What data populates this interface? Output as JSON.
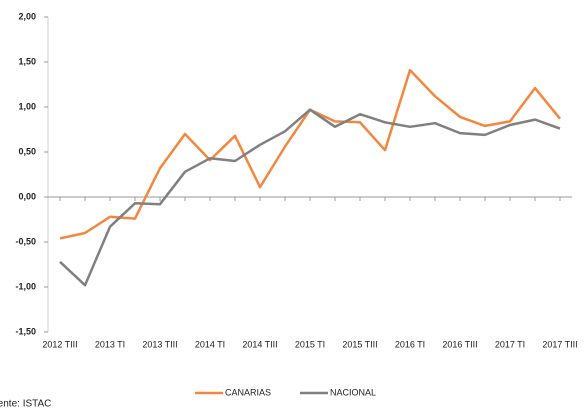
{
  "chart_data": {
    "type": "line",
    "categories": [
      "2012 TIII",
      null,
      "2013 TI",
      null,
      "2013 TIII",
      null,
      "2014 TI",
      null,
      "2014 TIII",
      null,
      "2015 TI",
      null,
      "2015 TIII",
      null,
      "2016 TI",
      null,
      "2016 TIII",
      null,
      "2017 TI",
      null,
      "2017 TIII"
    ],
    "series": [
      {
        "name": "CANARIAS",
        "color": "#f4873f",
        "values": [
          -0.46,
          -0.4,
          -0.22,
          -0.24,
          0.32,
          0.7,
          0.41,
          0.68,
          0.11,
          0.56,
          0.97,
          0.84,
          0.83,
          0.52,
          1.41,
          1.12,
          0.89,
          0.79,
          0.84,
          1.21,
          0.87
        ]
      },
      {
        "name": "NACIONAL",
        "color": "#808080",
        "values": [
          -0.72,
          -0.98,
          -0.33,
          -0.07,
          -0.08,
          0.28,
          0.43,
          0.4,
          0.58,
          0.73,
          0.97,
          0.78,
          0.92,
          0.83,
          0.78,
          0.82,
          0.71,
          0.69,
          0.8,
          0.86,
          0.76
        ]
      }
    ],
    "ylim": [
      -1.5,
      2.0
    ],
    "yticks": [
      {
        "value": -1.5,
        "label": "-1,50"
      },
      {
        "value": -1.0,
        "label": "-1,00"
      },
      {
        "value": -0.5,
        "label": "-0,50"
      },
      {
        "value": 0,
        "label": "0,00"
      },
      {
        "value": 0.5,
        "label": "0,50"
      },
      {
        "value": 1.0,
        "label": "1,00"
      },
      {
        "value": 1.5,
        "label": "1,50"
      },
      {
        "value": 2.0,
        "label": "2,00"
      }
    ],
    "source": "Fuente: ISTAC",
    "legend": "bottom"
  }
}
